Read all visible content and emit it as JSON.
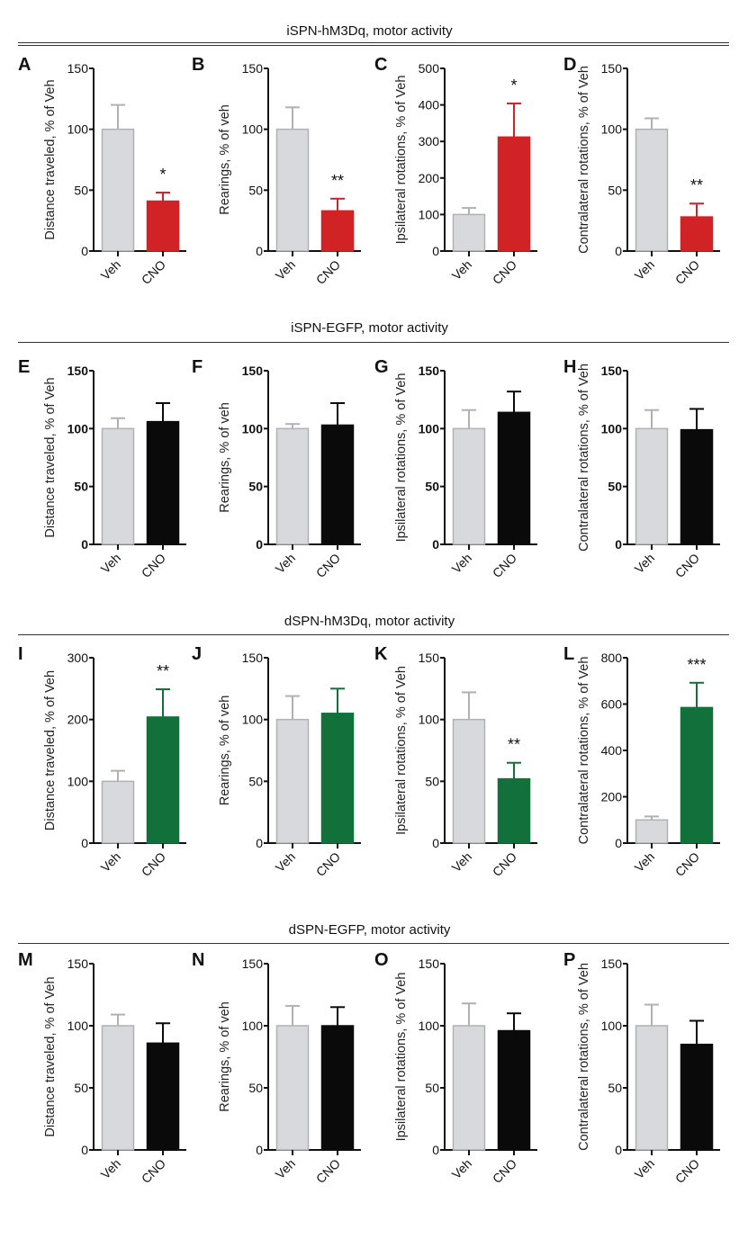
{
  "colors": {
    "veh_fill": "#d8d9dd",
    "veh_stroke": "#b1b1b3",
    "red": "#d12226",
    "green": "#12703a",
    "black": "#0a0a0a"
  },
  "sections": [
    {
      "title": "iSPN-hM3Dq, motor activity"
    },
    {
      "title": "iSPN-EGFP, motor activity"
    },
    {
      "title": "dSPN-hM3Dq, motor activity"
    },
    {
      "title": "dSPN-EGFP, motor activity"
    }
  ],
  "chart_data": [
    {
      "panel": "A",
      "section": 0,
      "type": "bar",
      "ylabel": "Distance traveled, % of Veh",
      "ylim": [
        0,
        150
      ],
      "yticks": [
        0,
        50,
        100,
        150
      ],
      "categories": [
        "Veh",
        "CNO"
      ],
      "values": [
        100,
        41
      ],
      "errors": [
        120,
        48
      ],
      "treatment_color": "red",
      "significance": "*",
      "bold_ticks": false
    },
    {
      "panel": "B",
      "section": 0,
      "type": "bar",
      "ylabel": "Rearings, % of veh",
      "ylim": [
        0,
        150
      ],
      "yticks": [
        0,
        50,
        100,
        150
      ],
      "categories": [
        "Veh",
        "CNO"
      ],
      "values": [
        100,
        33
      ],
      "errors": [
        118,
        43
      ],
      "treatment_color": "red",
      "significance": "**",
      "bold_ticks": false
    },
    {
      "panel": "C",
      "section": 0,
      "type": "bar",
      "ylabel": "Ipsilateral rotations, % of Veh",
      "ylim": [
        0,
        500
      ],
      "yticks": [
        0,
        100,
        200,
        300,
        400,
        500
      ],
      "categories": [
        "Veh",
        "CNO"
      ],
      "values": [
        100,
        312
      ],
      "errors": [
        118,
        404
      ],
      "treatment_color": "red",
      "significance": "*",
      "bold_ticks": false
    },
    {
      "panel": "D",
      "section": 0,
      "type": "bar",
      "ylabel": "Contralateral rotations, % of Veh",
      "ylim": [
        0,
        150
      ],
      "yticks": [
        0,
        50,
        100,
        150
      ],
      "categories": [
        "Veh",
        "CNO"
      ],
      "values": [
        100,
        28
      ],
      "errors": [
        109,
        39
      ],
      "treatment_color": "red",
      "significance": "**",
      "bold_ticks": false
    },
    {
      "panel": "E",
      "section": 1,
      "type": "bar",
      "ylabel": "Distance traveled, % of Veh",
      "ylim": [
        0,
        150
      ],
      "yticks": [
        0,
        50,
        100,
        150
      ],
      "categories": [
        "Veh",
        "CNO"
      ],
      "values": [
        100,
        106
      ],
      "errors": [
        109,
        122
      ],
      "treatment_color": "black",
      "significance": "",
      "bold_ticks": true
    },
    {
      "panel": "F",
      "section": 1,
      "type": "bar",
      "ylabel": "Rearings, % of veh",
      "ylim": [
        0,
        150
      ],
      "yticks": [
        0,
        50,
        100,
        150
      ],
      "categories": [
        "Veh",
        "CNO"
      ],
      "values": [
        100,
        103
      ],
      "errors": [
        104,
        122
      ],
      "treatment_color": "black",
      "significance": "",
      "bold_ticks": true
    },
    {
      "panel": "G",
      "section": 1,
      "type": "bar",
      "ylabel": "Ipsilateral rotations, % of Veh",
      "ylim": [
        0,
        150
      ],
      "yticks": [
        0,
        50,
        100,
        150
      ],
      "categories": [
        "Veh",
        "CNO"
      ],
      "values": [
        100,
        114
      ],
      "errors": [
        116,
        132
      ],
      "treatment_color": "black",
      "significance": "",
      "bold_ticks": true
    },
    {
      "panel": "H",
      "section": 1,
      "type": "bar",
      "ylabel": "Contralateral rotations, % of Veh",
      "ylim": [
        0,
        150
      ],
      "yticks": [
        0,
        50,
        100,
        150
      ],
      "categories": [
        "Veh",
        "CNO"
      ],
      "values": [
        100,
        99
      ],
      "errors": [
        116,
        117
      ],
      "treatment_color": "black",
      "significance": "",
      "bold_ticks": true
    },
    {
      "panel": "I",
      "section": 2,
      "type": "bar",
      "ylabel": "Distance traveled, % of Veh",
      "ylim": [
        0,
        300
      ],
      "yticks": [
        0,
        100,
        200,
        300
      ],
      "categories": [
        "Veh",
        "CNO"
      ],
      "values": [
        100,
        204
      ],
      "errors": [
        117,
        249
      ],
      "treatment_color": "green",
      "significance": "**",
      "bold_ticks": false
    },
    {
      "panel": "J",
      "section": 2,
      "type": "bar",
      "ylabel": "Rearings, % of veh",
      "ylim": [
        0,
        150
      ],
      "yticks": [
        0,
        50,
        100,
        150
      ],
      "categories": [
        "Veh",
        "CNO"
      ],
      "values": [
        100,
        105
      ],
      "errors": [
        119,
        125
      ],
      "treatment_color": "green",
      "significance": "",
      "bold_ticks": false
    },
    {
      "panel": "K",
      "section": 2,
      "type": "bar",
      "ylabel": "Ipsilateral rotations, % of Veh",
      "ylim": [
        0,
        150
      ],
      "yticks": [
        0,
        50,
        100,
        150
      ],
      "categories": [
        "Veh",
        "CNO"
      ],
      "values": [
        100,
        52
      ],
      "errors": [
        122,
        65
      ],
      "treatment_color": "green",
      "significance": "**",
      "bold_ticks": false
    },
    {
      "panel": "L",
      "section": 2,
      "type": "bar",
      "ylabel": "Contralateral rotations, % of Veh",
      "ylim": [
        0,
        800
      ],
      "yticks": [
        0,
        200,
        400,
        600,
        800
      ],
      "categories": [
        "Veh",
        "CNO"
      ],
      "values": [
        100,
        585
      ],
      "errors": [
        115,
        692
      ],
      "treatment_color": "green",
      "significance": "***",
      "bold_ticks": false
    },
    {
      "panel": "M",
      "section": 3,
      "type": "bar",
      "ylabel": "Distance traveled, % of Veh",
      "ylim": [
        0,
        150
      ],
      "yticks": [
        0,
        50,
        100,
        150
      ],
      "categories": [
        "Veh",
        "CNO"
      ],
      "values": [
        100,
        86
      ],
      "errors": [
        109,
        102
      ],
      "treatment_color": "black",
      "significance": "",
      "bold_ticks": false
    },
    {
      "panel": "N",
      "section": 3,
      "type": "bar",
      "ylabel": "Rearings, % of veh",
      "ylim": [
        0,
        150
      ],
      "yticks": [
        0,
        50,
        100,
        150
      ],
      "categories": [
        "Veh",
        "CNO"
      ],
      "values": [
        100,
        100
      ],
      "errors": [
        116,
        115
      ],
      "treatment_color": "black",
      "significance": "",
      "bold_ticks": false
    },
    {
      "panel": "O",
      "section": 3,
      "type": "bar",
      "ylabel": "Ipsilateral rotations, % of Veh",
      "ylim": [
        0,
        150
      ],
      "yticks": [
        0,
        50,
        100,
        150
      ],
      "categories": [
        "Veh",
        "CNO"
      ],
      "values": [
        100,
        96
      ],
      "errors": [
        118,
        110
      ],
      "treatment_color": "black",
      "significance": "",
      "bold_ticks": false
    },
    {
      "panel": "P",
      "section": 3,
      "type": "bar",
      "ylabel": "Contralateral rotations, % of Veh",
      "ylim": [
        0,
        150
      ],
      "yticks": [
        0,
        50,
        100,
        150
      ],
      "categories": [
        "Veh",
        "CNO"
      ],
      "values": [
        100,
        85
      ],
      "errors": [
        117,
        104
      ],
      "treatment_color": "black",
      "significance": "",
      "bold_ticks": false
    }
  ]
}
